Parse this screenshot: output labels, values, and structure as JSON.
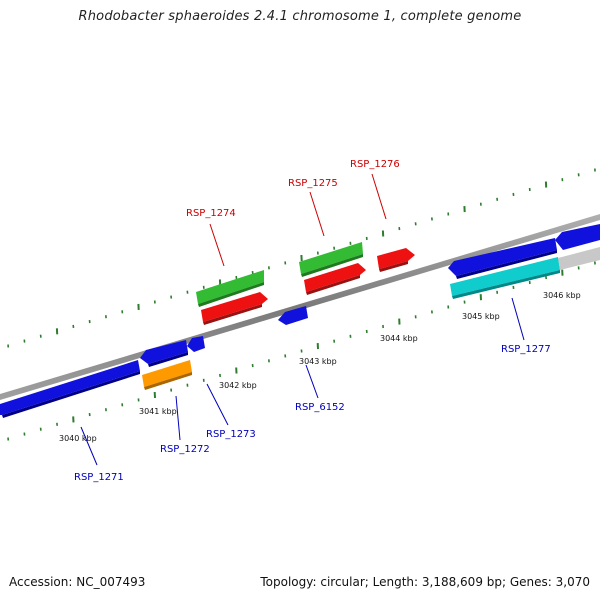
{
  "title": "Rhodobacter sphaeroides 2.4.1 chromosome 1, complete genome",
  "footer": {
    "accession": "Accession: NC_007493",
    "topology": "Topology: circular; Length: 3,188,609 bp; Genes: 3,070"
  },
  "colors": {
    "backbone": "#8a8a8a",
    "forward_label": "#cc0000",
    "reverse_label": "#0000bb",
    "tick": "#2e7d2e",
    "blue": "#1111dd",
    "red": "#ee1111",
    "green": "#33bb33",
    "orange": "#ff9900",
    "cyan": "#11cccc",
    "gray": "#c8c8c8"
  },
  "scale_labels": [
    "3040 kbp",
    "3041 kbp",
    "3042 kbp",
    "3043 kbp",
    "3044 kbp",
    "3045 kbp",
    "3046 kbp"
  ],
  "gene_labels": {
    "forward": [
      "RSP_1274",
      "RSP_1275",
      "RSP_1276"
    ],
    "reverse": [
      "RSP_1271",
      "RSP_1272",
      "RSP_1273",
      "RSP_6152",
      "RSP_1277"
    ]
  }
}
